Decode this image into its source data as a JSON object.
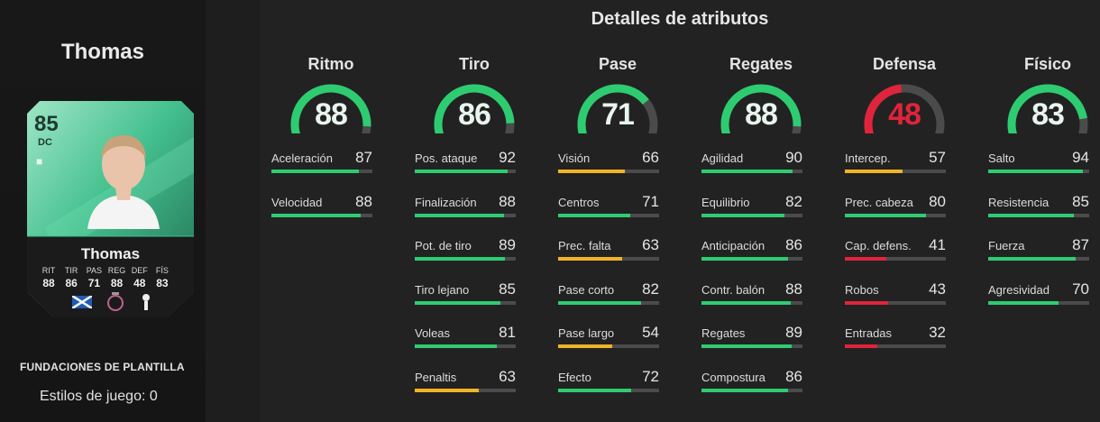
{
  "player": {
    "name": "Thomas",
    "rating": "85",
    "position": "DC",
    "card_stats": [
      {
        "label": "RIT",
        "value": "88"
      },
      {
        "label": "TIR",
        "value": "86"
      },
      {
        "label": "PAS",
        "value": "71"
      },
      {
        "label": "REG",
        "value": "88"
      },
      {
        "label": "DEF",
        "value": "48"
      },
      {
        "label": "FÍS",
        "value": "83"
      }
    ],
    "squad_label": "FUNDACIONES DE PLANTILLA",
    "playstyles": "Estilos de juego: 0"
  },
  "title": "Detalles de atributos",
  "colors": {
    "green": "#2ecc71",
    "red": "#e0243b",
    "yellow": "#f0b429",
    "track": "#4b4b4b",
    "card_teal": "#3fbf8f"
  },
  "categories": [
    {
      "name": "Ritmo",
      "value": 88,
      "color": "green",
      "attrs": [
        {
          "name": "Aceleración",
          "value": 87
        },
        {
          "name": "Velocidad",
          "value": 88
        }
      ]
    },
    {
      "name": "Tiro",
      "value": 86,
      "color": "green",
      "attrs": [
        {
          "name": "Pos. ataque",
          "value": 92
        },
        {
          "name": "Finalización",
          "value": 88
        },
        {
          "name": "Pot. de tiro",
          "value": 89
        },
        {
          "name": "Tiro lejano",
          "value": 85
        },
        {
          "name": "Voleas",
          "value": 81
        },
        {
          "name": "Penaltis",
          "value": 63
        }
      ]
    },
    {
      "name": "Pase",
      "value": 71,
      "color": "green",
      "attrs": [
        {
          "name": "Visión",
          "value": 66
        },
        {
          "name": "Centros",
          "value": 71
        },
        {
          "name": "Prec. falta",
          "value": 63
        },
        {
          "name": "Pase corto",
          "value": 82
        },
        {
          "name": "Pase largo",
          "value": 54
        },
        {
          "name": "Efecto",
          "value": 72
        }
      ]
    },
    {
      "name": "Regates",
      "value": 88,
      "color": "green",
      "attrs": [
        {
          "name": "Agilidad",
          "value": 90
        },
        {
          "name": "Equilibrio",
          "value": 82
        },
        {
          "name": "Anticipación",
          "value": 86
        },
        {
          "name": "Contr. balón",
          "value": 88
        },
        {
          "name": "Regates",
          "value": 89
        },
        {
          "name": "Compostura",
          "value": 86
        }
      ]
    },
    {
      "name": "Defensa",
      "value": 48,
      "color": "red",
      "attrs": [
        {
          "name": "Intercep.",
          "value": 57
        },
        {
          "name": "Prec. cabeza",
          "value": 80
        },
        {
          "name": "Cap. defens.",
          "value": 41
        },
        {
          "name": "Robos",
          "value": 43
        },
        {
          "name": "Entradas",
          "value": 32
        }
      ]
    },
    {
      "name": "Físico",
      "value": 83,
      "color": "green",
      "attrs": [
        {
          "name": "Salto",
          "value": 94
        },
        {
          "name": "Resistencia",
          "value": 85
        },
        {
          "name": "Fuerza",
          "value": 87
        },
        {
          "name": "Agresividad",
          "value": 70
        }
      ]
    }
  ]
}
